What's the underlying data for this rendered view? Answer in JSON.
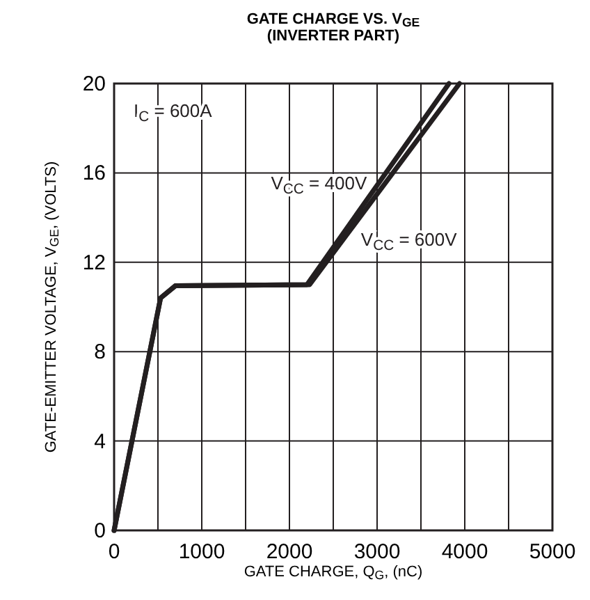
{
  "chart_data": {
    "type": "line",
    "title": "GATE CHARGE VS. V$_{GE}$",
    "subtitle": "(INVERTER PART)",
    "xlabel": "GATE CHARGE, Q$_{G}$, (nC)",
    "ylabel": "GATE-EMITTER VOLTAGE, V$_{GE}$, (VOLTS)",
    "annotations": [
      "I$_{C}$ = 600A"
    ],
    "xlim": [
      0,
      5000
    ],
    "ylim": [
      0,
      20
    ],
    "xticks": [
      0,
      {
        "value": 500,
        "label": null
      },
      1000,
      {
        "value": 1500,
        "label": null
      },
      2000,
      {
        "value": 2500,
        "label": null
      },
      3000,
      {
        "value": 3500,
        "label": null
      },
      4000,
      {
        "value": 4500,
        "label": null
      },
      5000
    ],
    "yticks": [
      0,
      4,
      8,
      12,
      16,
      20
    ],
    "grid": true,
    "marker": "none",
    "line_style": "solid",
    "series": [
      {
        "name": "V$_{CC}$ = 400V",
        "color": "#231f20",
        "x": [
          0,
          530,
          700,
          2200,
          3820
        ],
        "values": [
          0,
          10.4,
          10.95,
          11.0,
          20
        ]
      },
      {
        "name": "V$_{CC}$ = 600V",
        "color": "#231f20",
        "x": [
          0,
          530,
          700,
          2230,
          3940
        ],
        "values": [
          0,
          10.4,
          10.95,
          11.0,
          20
        ]
      }
    ]
  }
}
